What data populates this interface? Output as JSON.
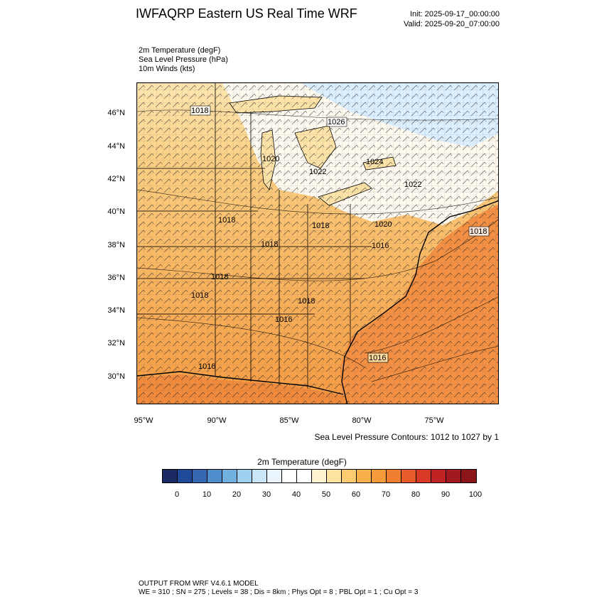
{
  "header": {
    "title": "IWFAQRP Eastern US Real Time WRF",
    "init": "Init: 2025-09-17_00:00:00",
    "valid": "Valid: 2025-09-20_07:00:00"
  },
  "fields": [
    "2m Temperature   (degF)",
    "Sea Level Pressure   (hPa)",
    "10m Winds   (kts)"
  ],
  "map": {
    "lat_labels": [
      "46°N",
      "44°N",
      "42°N",
      "40°N",
      "38°N",
      "36°N",
      "34°N",
      "32°N",
      "30°N"
    ],
    "lon_labels": [
      "95°W",
      "90°W",
      "85°W",
      "80°W",
      "75°W"
    ],
    "pressure_labels": [
      "1018",
      "1026",
      "1020",
      "1022",
      "1024",
      "1022",
      "1018",
      "1018",
      "1020",
      "1018",
      "1018",
      "1016",
      "1018",
      "1018",
      "1016",
      "1016",
      "1016",
      "1018"
    ],
    "colors": {
      "ocean_warm": "#f08a3c",
      "land_warm": "#fbc16c",
      "land_mild": "#fde3a8",
      "cool_north": "#ffffff",
      "coldest": "#cfe6f7"
    }
  },
  "contour_note": "Sea Level Pressure Contours: 1012 to 1027 by 1",
  "colorbar": {
    "title": "2m Temperature  (degF)",
    "ticks": [
      "0",
      "10",
      "20",
      "30",
      "40",
      "50",
      "60",
      "70",
      "80",
      "90",
      "100"
    ],
    "colors": [
      "#1b2a63",
      "#1f4a9a",
      "#3567b3",
      "#4f8ecc",
      "#72b0e0",
      "#9fd0f0",
      "#c9e6f8",
      "#e9f4fc",
      "#ffffff",
      "#ffffff",
      "#fff3d0",
      "#fde3a0",
      "#fccb72",
      "#f8b04c",
      "#f69a3c",
      "#f07f30",
      "#e85b2a",
      "#d83a26",
      "#c02323",
      "#a21a1f",
      "#8a1618"
    ]
  },
  "footer": {
    "line1": "OUTPUT FROM WRF V4.6.1 MODEL",
    "line2": "WE = 310 ; SN = 275 ; Levels = 38 ; Dis = 8km ; Phys Opt = 8 ; PBL Opt = 1 ; Cu Opt = 3"
  }
}
